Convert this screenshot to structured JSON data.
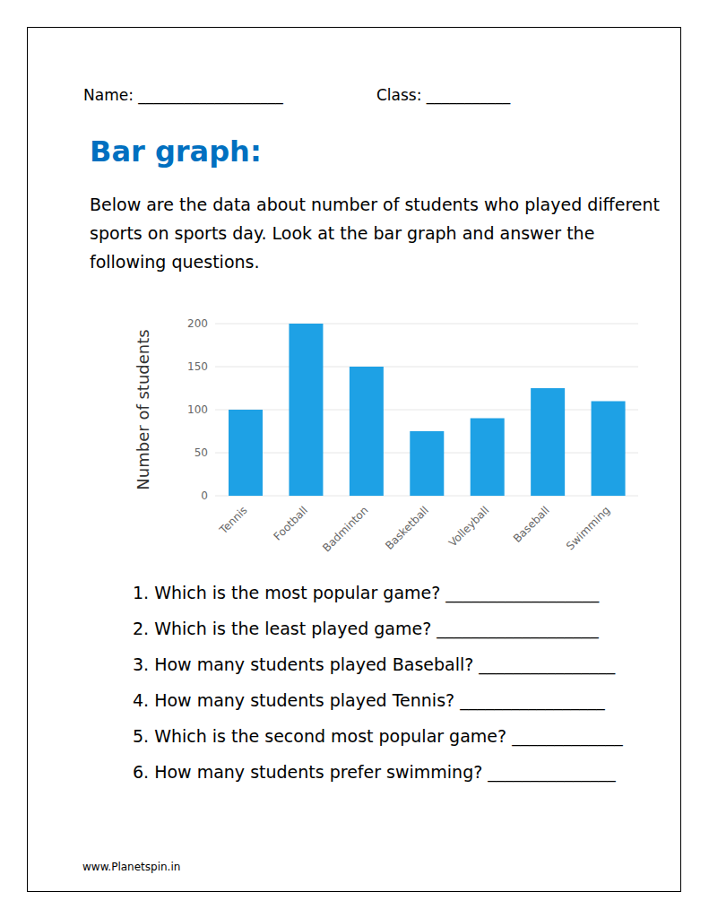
{
  "header": {
    "name": "Name: ___________________",
    "class": "Class: ___________"
  },
  "title": "Bar graph:",
  "intro": "Below are the data about number of students who played different sports on sports day. Look at the bar graph and answer the following questions.",
  "chart_data": {
    "type": "bar",
    "y_label": "Number of students",
    "categories": [
      "Tennis",
      "Football",
      "Badminton",
      "Basketball",
      "Volleyball",
      "Baseball",
      "Swimming"
    ],
    "values": [
      100,
      200,
      150,
      75,
      90,
      125,
      110
    ],
    "color": "#1ea1e5",
    "ylim": [
      0,
      200
    ],
    "yticks": [
      0,
      50,
      100,
      150,
      200
    ],
    "grid": true
  },
  "questions": [
    "1. Which is the most popular game? __________________",
    "2. Which is the least played game? ___________________",
    "3. How many students played Baseball? ________________",
    "4. How many students played Tennis? _________________",
    "5. Which is the second most popular game? _____________",
    "6. How many students prefer swimming? _______________"
  ],
  "footer": "www.Planetspin.in"
}
